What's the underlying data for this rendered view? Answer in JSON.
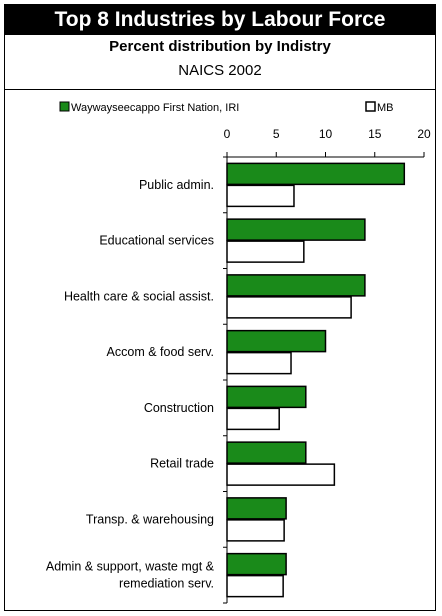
{
  "header": {
    "title": "Top 8 Industries by Labour Force",
    "subtitle": "Percent distribution by Indistry",
    "subtitle2": "NAICS 2002"
  },
  "colors": {
    "series1": "#1a8a1a",
    "series2": "#ffffff",
    "stroke": "#000000"
  },
  "chart_data": {
    "type": "bar",
    "orientation": "horizontal",
    "categories": [
      "Public admin.",
      "Educational services",
      "Health care & social assist.",
      "Accom & food serv.",
      "Construction",
      "Retail trade",
      "Transp. & warehousing",
      "Admin & support, waste mgt & remediation serv."
    ],
    "category_label_lines": [
      [
        "Public admin."
      ],
      [
        "Educational services"
      ],
      [
        "Health care & social assist."
      ],
      [
        "Accom & food serv."
      ],
      [
        "Construction"
      ],
      [
        "Retail trade"
      ],
      [
        "Transp. & warehousing"
      ],
      [
        "Admin & support, waste mgt &",
        "remediation serv."
      ]
    ],
    "series": [
      {
        "name": "Waywayseecappo First Nation, IRI",
        "values": [
          18,
          14,
          14,
          10,
          8,
          8,
          6,
          6
        ]
      },
      {
        "name": "MB",
        "values": [
          6.8,
          7.8,
          12.6,
          6.5,
          5.3,
          10.9,
          5.8,
          5.7
        ]
      }
    ],
    "xlim": [
      0,
      20
    ],
    "xticks": [
      0,
      5,
      10,
      15,
      20
    ],
    "legend_position": "top"
  }
}
